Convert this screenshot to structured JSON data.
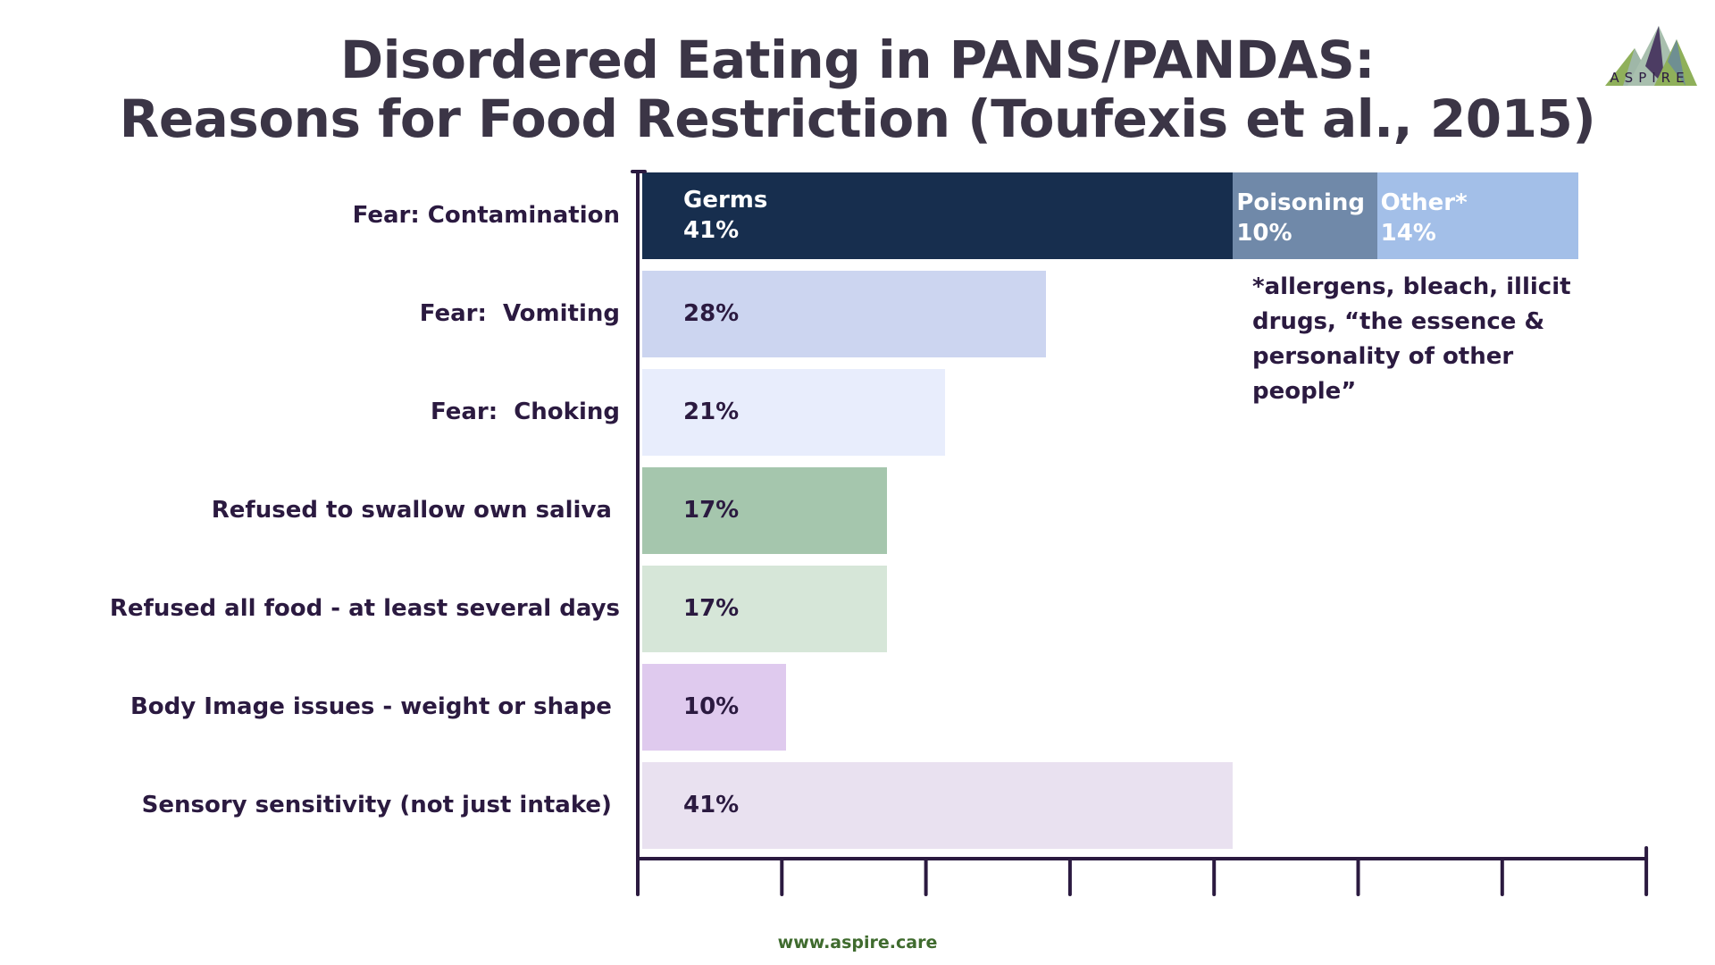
{
  "title_line1": "Disordered Eating in PANS/PANDAS:",
  "title_line2": "Reasons for Food Restriction (Toufexis et al., 2015)",
  "logo_text": "ASPIRE",
  "footer": "www.aspire.care",
  "chart_data": {
    "type": "bar",
    "orientation": "horizontal",
    "xlim": [
      0,
      70
    ],
    "x_tick_step": 10,
    "x_tick_labels_shown": false,
    "grid": false,
    "categories": [
      "Fear: Contamination",
      "Fear:  Vomiting",
      "Fear:  Choking",
      "Refused to swallow own saliva ",
      "Refused all food - at least several days",
      "Body Image issues - weight or shape ",
      "Sensory sensitivity (not just intake) "
    ],
    "stacked_first_row": [
      {
        "name": "Germs",
        "value": 41,
        "label": "41%",
        "color": "#172e4e",
        "text_color": "#ffffff"
      },
      {
        "name": "Poisoning",
        "value": 10,
        "label": "10%",
        "color": "#7089a9",
        "text_color": "#ffffff"
      },
      {
        "name": "Other*",
        "value": 14,
        "label": "14%",
        "color": "#a3bfe8",
        "text_color": "#ffffff"
      }
    ],
    "values": [
      null,
      28,
      21,
      17,
      17,
      10,
      41
    ],
    "value_labels": [
      null,
      "28%",
      "21%",
      "17%",
      "17%",
      "10%",
      "41%"
    ],
    "colors": [
      null,
      "#ccd5f0",
      "#e8edfc",
      "#a5c6ad",
      "#d6e6d8",
      "#dfcaee",
      "#e9e1f0"
    ],
    "annotation": "*allergens, bleach, illicit drugs, “the essence & personality of other people”"
  }
}
